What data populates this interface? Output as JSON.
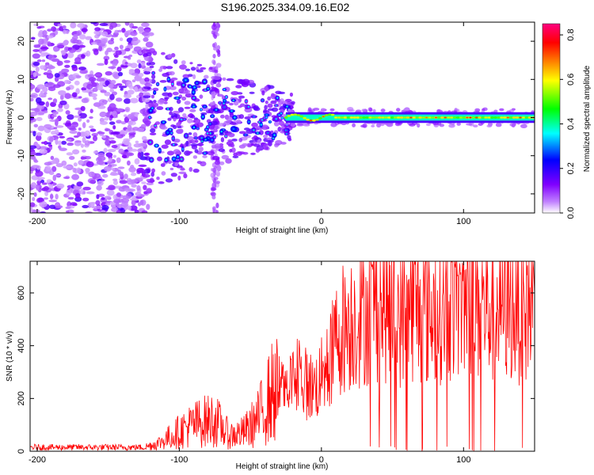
{
  "chart_data": [
    {
      "type": "heatmap",
      "title": "S196.2025.334.09.16.E02",
      "xlabel": "Height of straight line (km)",
      "ylabel": "Frequency (Hz)",
      "xlim": [
        -205,
        150
      ],
      "ylim": [
        -25,
        25
      ],
      "xticks": [
        -200,
        -100,
        0,
        100
      ],
      "yticks": [
        -20,
        -10,
        0,
        10,
        20
      ],
      "colorbar": {
        "label": "Normalized spectral amplitude",
        "range": [
          0,
          0.85
        ],
        "ticks": [
          0.0,
          0.2,
          0.4,
          0.6,
          0.8
        ],
        "tick_labels": [
          "0.0",
          "0.2",
          "0.4",
          "0.6",
          "0.8"
        ],
        "colors": [
          "#ffffff",
          "#8000ff",
          "#0000ff",
          "#00ffff",
          "#00ff00",
          "#ffff00",
          "#ff8000",
          "#ff0000",
          "#ff0080"
        ]
      },
      "features": [
        {
          "name": "broadband noise",
          "x_range": [
            -205,
            -125
          ],
          "y_range": [
            -25,
            25
          ],
          "level": 0.12
        },
        {
          "name": "diffuse band",
          "x_range": [
            -125,
            -20
          ],
          "y_range": [
            -15,
            12
          ],
          "level": 0.3
        },
        {
          "name": "narrow ridge",
          "x_range": [
            -25,
            150
          ],
          "frequency": 0,
          "level": 0.8
        }
      ]
    },
    {
      "type": "line",
      "xlabel": "Height of straight line (km)",
      "ylabel": "SNR (10 * v/v)",
      "xlim": [
        -205,
        150
      ],
      "ylim": [
        0,
        720
      ],
      "xticks": [
        -200,
        -100,
        0,
        100
      ],
      "yticks": [
        0,
        200,
        400,
        600
      ],
      "series": [
        {
          "name": "SNR",
          "color": "#ff0000",
          "x": [
            -205,
            -180,
            -160,
            -140,
            -125,
            -115,
            -105,
            -95,
            -85,
            -75,
            -65,
            -55,
            -45,
            -35,
            -25,
            -15,
            -5,
            5,
            10,
            15,
            25,
            35,
            45,
            55,
            65,
            75,
            85,
            95,
            100,
            110,
            120,
            130,
            140,
            150
          ],
          "values": [
            15,
            15,
            15,
            15,
            15,
            30,
            60,
            90,
            110,
            120,
            60,
            70,
            120,
            220,
            250,
            270,
            240,
            320,
            420,
            470,
            510,
            540,
            560,
            520,
            560,
            520,
            560,
            570,
            600,
            560,
            540,
            560,
            550,
            560
          ]
        }
      ]
    }
  ]
}
